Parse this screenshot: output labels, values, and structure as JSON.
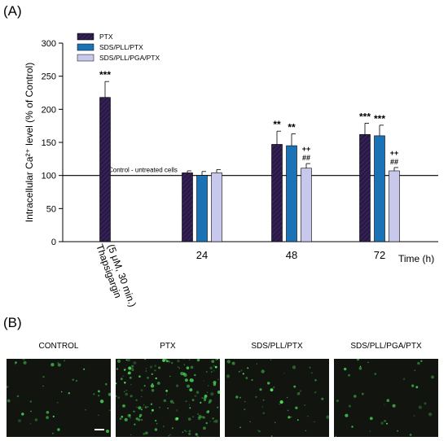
{
  "panels": {
    "a_label": "(A)",
    "b_label": "(B)"
  },
  "chart_data": {
    "type": "bar",
    "ylabel": "Intracellular Ca²⁺ level (% of Control)",
    "xlabel": "Time (h)",
    "ylim": [
      0,
      300
    ],
    "yticks": [
      0,
      50,
      100,
      150,
      200,
      250,
      300
    ],
    "categories": [
      "Thapsigargin\n(5 μM, 30 min.)",
      "24",
      "48",
      "72"
    ],
    "series": [
      {
        "name": "PTX",
        "color": "#2a1948",
        "values": [
          218,
          104,
          147,
          162
        ],
        "errors": [
          24,
          3,
          20,
          17
        ],
        "marks": [
          "***",
          "",
          "**",
          "***"
        ]
      },
      {
        "name": "SDS/PLL/PTX",
        "color": "#1b72b4",
        "values": [
          null,
          100,
          145,
          160
        ],
        "errors": [
          null,
          6,
          18,
          16
        ],
        "marks": [
          "",
          "",
          "**",
          "***"
        ]
      },
      {
        "name": "SDS/PLL/PGA/PTX",
        "color": "#c8c8ec",
        "values": [
          null,
          104,
          111,
          107
        ],
        "errors": [
          null,
          5,
          7,
          5
        ],
        "marks": [
          "",
          "",
          "++\n##",
          "++\n##"
        ]
      }
    ],
    "reference_line": {
      "value": 100,
      "label": "Control - untreated cells"
    },
    "legend": "top-left"
  },
  "micrographs": [
    {
      "title": "CONTROL",
      "name": "control",
      "density": 40
    },
    {
      "title": "PTX",
      "name": "ptx",
      "density": 170
    },
    {
      "title": "SDS/PLL/PTX",
      "name": "sds-pll-ptx",
      "density": 55
    },
    {
      "title": "SDS/PLL/PGA/PTX",
      "name": "sds-pll-pga-ptx",
      "density": 35
    }
  ]
}
